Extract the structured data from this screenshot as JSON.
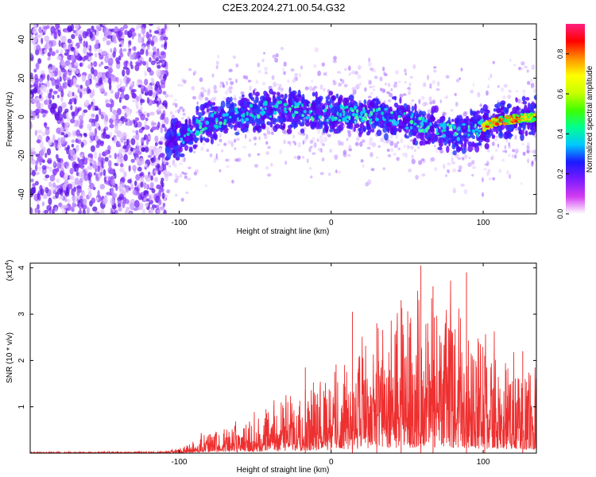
{
  "title": "C2E3.2024.271.00.54.G32",
  "chart_data": [
    {
      "type": "heatmap",
      "xlabel": "Height of straight line (km)",
      "ylabel": "Frequency (Hz)",
      "xlim": [
        -198,
        135
      ],
      "ylim": [
        -50,
        48
      ],
      "xticks": [
        -100,
        0,
        100
      ],
      "yticks": [
        -40,
        -20,
        0,
        20,
        40
      ],
      "colorbar": {
        "label": "Normalized spectral amplitude",
        "range": [
          0,
          0.95
        ],
        "ticks": [
          0.0,
          0.2,
          0.4,
          0.6,
          0.8
        ],
        "stops": [
          "#ffffff",
          "#d23cf0",
          "#7a1aff",
          "#1a1aff",
          "#00c8ff",
          "#00ff90",
          "#40ff00",
          "#c8ff00",
          "#ffff00",
          "#ff9000",
          "#ff0000",
          "#ff2080"
        ]
      },
      "features": {
        "noise_region_x": [
          -198,
          -108
        ],
        "ridge": [
          {
            "x": -108,
            "y": -14
          },
          {
            "x": -80,
            "y": -2
          },
          {
            "x": -40,
            "y": 4
          },
          {
            "x": 0,
            "y": 2
          },
          {
            "x": 40,
            "y": 0
          },
          {
            "x": 80,
            "y": -8
          },
          {
            "x": 98,
            "y": -6
          },
          {
            "x": 110,
            "y": -2
          },
          {
            "x": 135,
            "y": 0
          }
        ],
        "strong_band_x": [
          100,
          135
        ],
        "strong_band_peak": 0.85
      }
    },
    {
      "type": "line",
      "xlabel": "Height of straight line (km)",
      "ylabel": "SNR (10 * v/v)",
      "scale_note": "(x10",
      "scale_exp": "4",
      "scale_close": ")",
      "xlim": [
        -198,
        135
      ],
      "ylim": [
        0,
        4.1
      ],
      "xticks": [
        -100,
        0,
        100
      ],
      "yticks": [
        1,
        2,
        3,
        4
      ],
      "series": [
        {
          "color": "#ee3030",
          "envelope": [
            {
              "x": -198,
              "y": 0.02
            },
            {
              "x": -110,
              "y": 0.03
            },
            {
              "x": -100,
              "y": 0.08
            },
            {
              "x": -80,
              "y": 0.35
            },
            {
              "x": -60,
              "y": 0.5
            },
            {
              "x": -40,
              "y": 0.7
            },
            {
              "x": -20,
              "y": 1.0
            },
            {
              "x": 0,
              "y": 1.3
            },
            {
              "x": 20,
              "y": 1.7
            },
            {
              "x": 40,
              "y": 2.1
            },
            {
              "x": 60,
              "y": 2.4
            },
            {
              "x": 80,
              "y": 2.3
            },
            {
              "x": 100,
              "y": 1.8
            },
            {
              "x": 120,
              "y": 1.5
            },
            {
              "x": 135,
              "y": 1.4
            }
          ],
          "peaks": [
            {
              "x": 59,
              "y": 4.05
            },
            {
              "x": 89,
              "y": 3.9
            },
            {
              "x": 46,
              "y": 3.3
            },
            {
              "x": 14,
              "y": 3.05
            },
            {
              "x": -17,
              "y": 1.85
            },
            {
              "x": 67,
              "y": 3.6
            },
            {
              "x": 30,
              "y": 2.8
            },
            {
              "x": 101,
              "y": 2.1
            },
            {
              "x": 126,
              "y": 2.2
            }
          ]
        }
      ]
    }
  ]
}
